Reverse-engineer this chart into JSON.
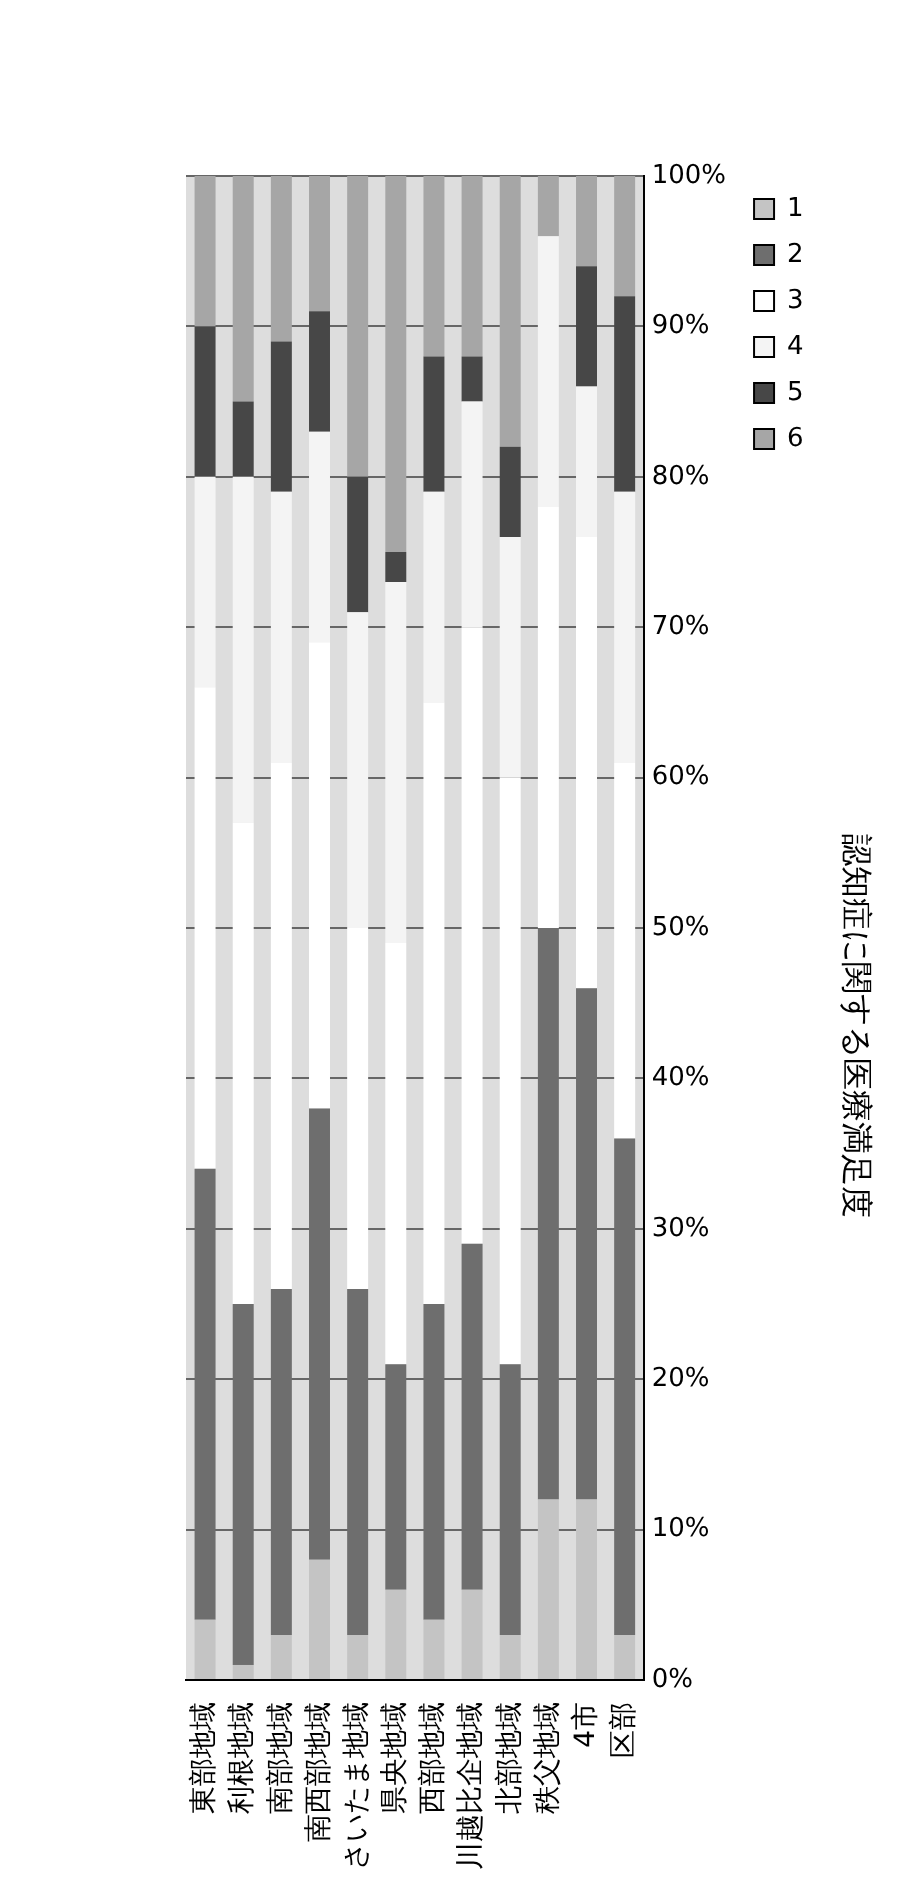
{
  "chart_data": {
    "type": "bar",
    "stacked": true,
    "title": "認知症に関する医療満足度",
    "categories": [
      "東部地域",
      "利根地域",
      "南部地域",
      "南西部地域",
      "さいたま地域",
      "県央地域",
      "西部地域",
      "川越比企地域",
      "北部地域",
      "秩父地域",
      "4市",
      "区部"
    ],
    "series": [
      {
        "name": "1",
        "color": "#c4c4c4",
        "values": [
          4,
          1,
          3,
          8,
          3,
          6,
          4,
          6,
          3,
          12,
          12,
          3
        ]
      },
      {
        "name": "2",
        "color": "#6e6e6e",
        "values": [
          30,
          24,
          23,
          30,
          23,
          15,
          21,
          23,
          18,
          38,
          34,
          33
        ]
      },
      {
        "name": "3",
        "color": "#ffffff",
        "values": [
          32,
          32,
          35,
          31,
          24,
          28,
          40,
          41,
          39,
          28,
          30,
          25
        ]
      },
      {
        "name": "4",
        "color": "#f4f4f4",
        "values": [
          14,
          23,
          18,
          14,
          21,
          24,
          14,
          15,
          16,
          18,
          10,
          18
        ]
      },
      {
        "name": "5",
        "color": "#474747",
        "values": [
          10,
          5,
          10,
          8,
          9,
          2,
          9,
          3,
          6,
          0,
          8,
          13
        ]
      },
      {
        "name": "6",
        "color": "#a6a6a6",
        "values": [
          10,
          15,
          11,
          9,
          20,
          25,
          12,
          12,
          18,
          4,
          6,
          8
        ]
      }
    ],
    "ylim": [
      0,
      100
    ],
    "yticks": [
      {
        "value": 0,
        "label": "0%"
      },
      {
        "value": 10,
        "label": "10%"
      },
      {
        "value": 20,
        "label": "20%"
      },
      {
        "value": 30,
        "label": "30%"
      },
      {
        "value": 40,
        "label": "40%"
      },
      {
        "value": 50,
        "label": "50%"
      },
      {
        "value": 60,
        "label": "60%"
      },
      {
        "value": 70,
        "label": "70%"
      },
      {
        "value": 80,
        "label": "80%"
      },
      {
        "value": 90,
        "label": "90%"
      },
      {
        "value": 100,
        "label": "100%"
      }
    ],
    "grid": "y",
    "legend": "top right"
  }
}
